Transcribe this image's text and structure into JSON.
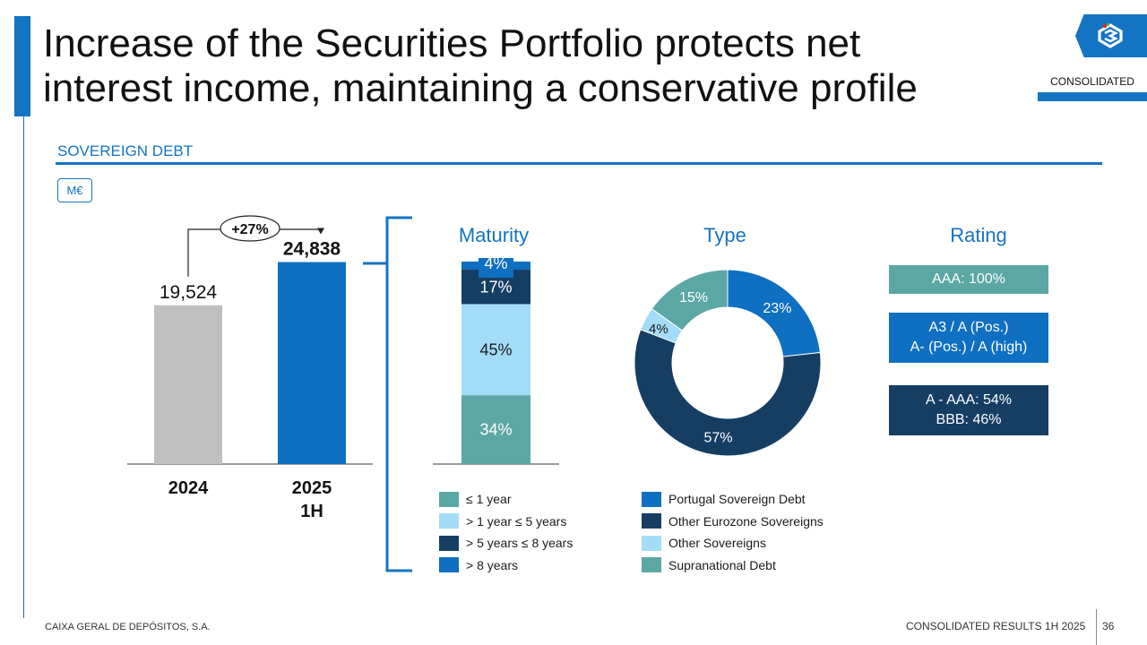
{
  "header": {
    "title_line1": "Increase of the Securities Portfolio protects net",
    "title_line2": "interest income, maintaining a conservative profile",
    "badge": "CONSOLIDATED"
  },
  "section": {
    "title": "SOVEREIGN DEBT",
    "unit": "M€"
  },
  "chart_data": [
    {
      "type": "bar",
      "title": "",
      "categories": [
        "2024",
        "2025\n1H"
      ],
      "category_lines": [
        [
          "2024"
        ],
        [
          "2025",
          "1H"
        ]
      ],
      "values": [
        19524,
        24838
      ],
      "value_labels": [
        "19,524",
        "24,838"
      ],
      "colors": [
        "#bfbfbf",
        "#0f6fc0"
      ],
      "ylim": [
        0,
        26000
      ],
      "annotation": "+27%"
    },
    {
      "type": "bar",
      "title": "Maturity",
      "stacked": true,
      "series": [
        {
          "name": "≤ 1 year",
          "value": 34,
          "label": "34%",
          "color": "#5ba7a6"
        },
        {
          "name": "> 1 year ≤ 5 years",
          "value": 45,
          "label": "45%",
          "color": "#a3dcf7"
        },
        {
          "name": "> 5 years ≤ 8 years",
          "value": 17,
          "label": "17%",
          "color": "#163e63"
        },
        {
          "name": "> 8 years",
          "value": 4,
          "label": "4%",
          "color": "#0f6fc0"
        }
      ]
    },
    {
      "type": "pie",
      "title": "Type",
      "donut": true,
      "slices": [
        {
          "name": "Portugal Sovereign Debt",
          "value": 23,
          "label": "23%",
          "color": "#0f6fc0"
        },
        {
          "name": "Other Eurozone Sovereigns",
          "value": 57,
          "label": "57%",
          "color": "#163e63"
        },
        {
          "name": "Other Sovereigns",
          "value": 4,
          "label": "4%",
          "color": "#a3dcf7"
        },
        {
          "name": "Supranational Debt",
          "value": 15,
          "label": "15%",
          "color": "#5ba7a6"
        }
      ]
    }
  ],
  "rating": {
    "title": "Rating",
    "boxes": [
      {
        "lines": [
          "AAA: 100%"
        ],
        "color": "#5ba7a6"
      },
      {
        "lines": [
          "A3 / A (Pos.)",
          "A- (Pos.) / A (high)"
        ],
        "color": "#0f6fc0"
      },
      {
        "lines": [
          "A - AAA: 54%",
          "BBB: 46%"
        ],
        "color": "#163e63"
      }
    ]
  },
  "footer": {
    "company": "CAIXA GERAL DE DEPÓSITOS, S.A.",
    "report": "CONSOLIDATED RESULTS 1H 2025",
    "page": "36"
  }
}
